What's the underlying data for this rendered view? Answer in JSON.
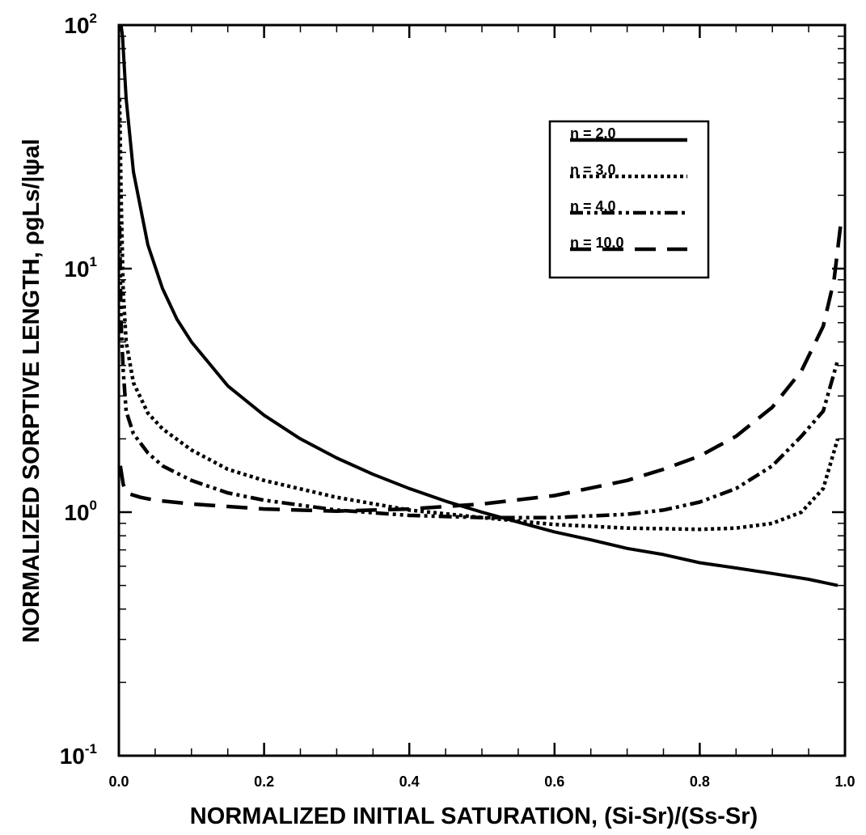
{
  "chart_data": {
    "type": "line",
    "xlabel": "NORMALIZED INITIAL SATURATION,  (Si-Sr)/(Ss-Sr)",
    "ylabel": "NORMALIZED SORPTIVE LENGTH, ρgLs/|ψal",
    "x_scale": "linear",
    "y_scale": "log",
    "xlim": [
      0.0,
      1.0
    ],
    "ylim": [
      0.1,
      100
    ],
    "x_ticks": [
      "0.0",
      "0.2",
      "0.4",
      "0.6",
      "0.8",
      "1.0"
    ],
    "y_ticks": [
      {
        "base": "10",
        "exp": "-1"
      },
      {
        "base": "10",
        "exp": "0"
      },
      {
        "base": "10",
        "exp": "1"
      },
      {
        "base": "10",
        "exp": "2"
      }
    ],
    "grid": false,
    "legend_position": "top-right",
    "series": [
      {
        "name": "n = 2.0",
        "line_style": "solid",
        "color": "#000000",
        "x": [
          0.003,
          0.005,
          0.01,
          0.02,
          0.04,
          0.06,
          0.08,
          0.1,
          0.15,
          0.2,
          0.25,
          0.3,
          0.35,
          0.4,
          0.45,
          0.5,
          0.55,
          0.6,
          0.65,
          0.7,
          0.75,
          0.8,
          0.85,
          0.9,
          0.95,
          0.99
        ],
        "y": [
          100,
          90,
          50,
          25,
          12.5,
          8.3,
          6.2,
          5.0,
          3.3,
          2.5,
          2.0,
          1.67,
          1.43,
          1.25,
          1.11,
          1.0,
          0.91,
          0.83,
          0.77,
          0.71,
          0.67,
          0.62,
          0.59,
          0.56,
          0.53,
          0.5
        ]
      },
      {
        "name": "n = 3.0",
        "line_style": "dotted",
        "color": "#000000",
        "x": [
          0.001,
          0.003,
          0.006,
          0.01,
          0.02,
          0.04,
          0.06,
          0.1,
          0.15,
          0.2,
          0.3,
          0.4,
          0.5,
          0.6,
          0.7,
          0.8,
          0.85,
          0.9,
          0.94,
          0.97,
          0.99
        ],
        "y": [
          50,
          20,
          8,
          5.0,
          3.4,
          2.55,
          2.2,
          1.8,
          1.5,
          1.35,
          1.15,
          1.02,
          0.95,
          0.89,
          0.86,
          0.85,
          0.86,
          0.9,
          1.0,
          1.25,
          2.0
        ]
      },
      {
        "name": "n = 4.0",
        "line_style": "dash-dot-dot",
        "color": "#000000",
        "x": [
          0.001,
          0.003,
          0.006,
          0.01,
          0.02,
          0.04,
          0.06,
          0.1,
          0.15,
          0.2,
          0.3,
          0.4,
          0.5,
          0.6,
          0.7,
          0.75,
          0.8,
          0.85,
          0.9,
          0.94,
          0.97,
          0.99
        ],
        "y": [
          15,
          6,
          3.8,
          2.6,
          2.1,
          1.75,
          1.55,
          1.35,
          1.2,
          1.12,
          1.02,
          0.97,
          0.95,
          0.95,
          0.98,
          1.02,
          1.1,
          1.25,
          1.55,
          2.05,
          2.6,
          4.2
        ]
      },
      {
        "name": "n = 10.0",
        "line_style": "dashed",
        "color": "#000000",
        "x": [
          0.002,
          0.006,
          0.01,
          0.03,
          0.05,
          0.1,
          0.2,
          0.3,
          0.4,
          0.5,
          0.6,
          0.7,
          0.75,
          0.8,
          0.85,
          0.9,
          0.94,
          0.97,
          0.985,
          0.995
        ],
        "y": [
          1.55,
          1.3,
          1.2,
          1.15,
          1.12,
          1.08,
          1.03,
          1.01,
          1.03,
          1.08,
          1.17,
          1.35,
          1.5,
          1.7,
          2.05,
          2.7,
          3.8,
          5.8,
          9.0,
          16.0
        ]
      }
    ]
  }
}
